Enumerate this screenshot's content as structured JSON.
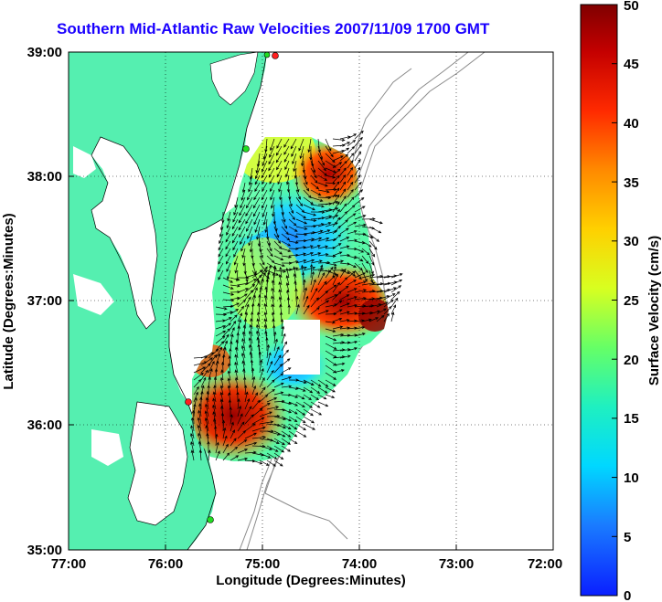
{
  "title": "Southern Mid-Atlantic Raw Velocities 2007/11/09 1700 GMT",
  "xlabel": "Longitude (Degrees:Minutes)",
  "ylabel": "Latitude (Degrees:Minutes)",
  "x_ticks": [
    "77:00",
    "76:00",
    "75:00",
    "74:00",
    "73:00",
    "72:00"
  ],
  "y_ticks": [
    "39:00",
    "38:00",
    "37:00",
    "36:00",
    "35:00"
  ],
  "colorbar": {
    "label": "Surface Velocity (cm/s)",
    "ticks": [
      "50",
      "45",
      "40",
      "35",
      "30",
      "25",
      "20",
      "15",
      "10",
      "5",
      "0"
    ]
  },
  "colors": {
    "land": "#55efb0",
    "title": "#1a00ff",
    "station_red": "#ff2020",
    "station_green": "#22dd22"
  },
  "chart_data": {
    "type": "heatmap",
    "xlim": [
      "77:00",
      "72:00"
    ],
    "ylim": [
      "35:00",
      "39:00"
    ],
    "value_range": [
      0,
      50
    ],
    "units": "cm/s",
    "grid": true
  }
}
